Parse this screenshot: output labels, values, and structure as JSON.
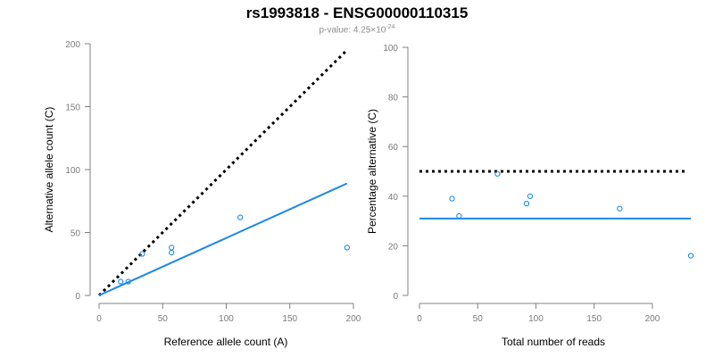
{
  "title": "rs1993818 - ENSG00000110315",
  "subtitle": {
    "prefix": "p-value: 4.25×10",
    "exponent": "-24"
  },
  "chart_data": [
    {
      "type": "scatter",
      "xlabel": "Reference allele count (A)",
      "ylabel": "Alternative allele count (C)",
      "xlim": [
        0,
        200
      ],
      "ylim": [
        0,
        200
      ],
      "xticks": [
        0,
        50,
        100,
        150,
        200
      ],
      "yticks": [
        0,
        50,
        100,
        150,
        200
      ],
      "points": [
        {
          "x": 17,
          "y": 11
        },
        {
          "x": 23,
          "y": 11
        },
        {
          "x": 34,
          "y": 33
        },
        {
          "x": 57,
          "y": 34
        },
        {
          "x": 57,
          "y": 38
        },
        {
          "x": 111,
          "y": 62
        },
        {
          "x": 195,
          "y": 38
        }
      ],
      "point_color": "#1e88e5",
      "reference_line": {
        "style": "dotted",
        "color": "#000000",
        "from": [
          0,
          0
        ],
        "to": [
          195,
          195
        ]
      },
      "fit_line": {
        "style": "solid",
        "color": "#1e88e5",
        "from": [
          0,
          0
        ],
        "to": [
          195,
          89
        ]
      }
    },
    {
      "type": "scatter",
      "xlabel": "Total number of reads",
      "ylabel": "Percentage alternative (C)",
      "xlim": [
        0,
        233
      ],
      "ylim": [
        0,
        100
      ],
      "xticks": [
        0,
        50,
        100,
        150,
        200
      ],
      "yticks": [
        0,
        20,
        40,
        60,
        80,
        100
      ],
      "points": [
        {
          "x": 28,
          "y": 39
        },
        {
          "x": 34,
          "y": 32
        },
        {
          "x": 67,
          "y": 49
        },
        {
          "x": 92,
          "y": 37
        },
        {
          "x": 95,
          "y": 40
        },
        {
          "x": 172,
          "y": 35
        },
        {
          "x": 233,
          "y": 16
        }
      ],
      "point_color": "#1e88e5",
      "reference_line": {
        "style": "dotted",
        "color": "#000000",
        "y": 50
      },
      "fit_line": {
        "style": "solid",
        "color": "#1e88e5",
        "y": 31
      }
    }
  ]
}
